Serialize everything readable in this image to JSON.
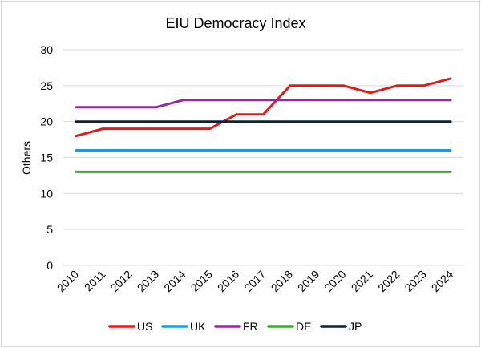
{
  "chart_data": {
    "type": "line",
    "title": "EIU Democracy Index",
    "xlabel": "",
    "ylabel": "Others",
    "categories": [
      "2010",
      "2011",
      "2012",
      "2013",
      "2014",
      "2015",
      "2016",
      "2017",
      "2018",
      "2019",
      "2020",
      "2021",
      "2022",
      "2023",
      "2024"
    ],
    "ylim": [
      0,
      30
    ],
    "yticks": [
      0,
      5,
      10,
      15,
      20,
      25,
      30
    ],
    "grid": true,
    "legend_position": "bottom",
    "series": [
      {
        "name": "US",
        "color": "#e31a1c",
        "values": [
          18,
          19,
          19,
          19,
          19,
          19,
          21,
          21,
          25,
          25,
          25,
          24,
          25,
          25,
          26
        ]
      },
      {
        "name": "UK",
        "color": "#1f9bd7",
        "values": [
          16,
          16,
          16,
          16,
          16,
          16,
          16,
          16,
          16,
          16,
          16,
          16,
          16,
          16,
          16
        ]
      },
      {
        "name": "FR",
        "color": "#8e2ba0",
        "values": [
          22,
          22,
          22,
          22,
          23,
          23,
          23,
          23,
          23,
          23,
          23,
          23,
          23,
          23,
          23
        ]
      },
      {
        "name": "DE",
        "color": "#3fa535",
        "values": [
          13,
          13,
          13,
          13,
          13,
          13,
          13,
          13,
          13,
          13,
          13,
          13,
          13,
          13,
          13
        ]
      },
      {
        "name": "JP",
        "color": "#0d2236",
        "values": [
          20,
          20,
          20,
          20,
          20,
          20,
          20,
          20,
          20,
          20,
          20,
          20,
          20,
          20,
          20
        ]
      }
    ]
  }
}
